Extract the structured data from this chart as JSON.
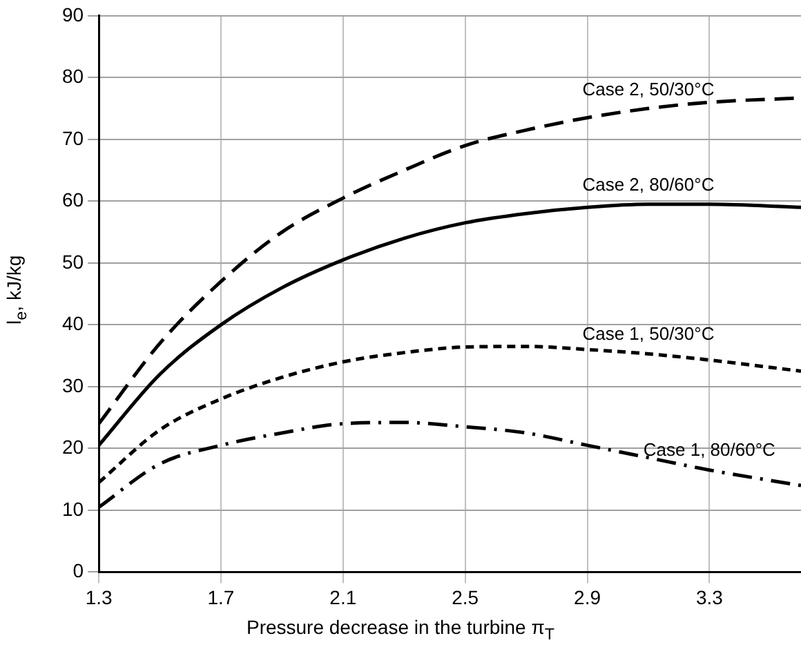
{
  "chart_data": {
    "type": "line",
    "xlabel": "Pressure decrease in the turbine π$_{T}$",
    "ylabel": "l$_{e}$, kJ/kg",
    "x": [
      1.3,
      1.5,
      1.7,
      1.9,
      2.1,
      2.3,
      2.5,
      2.7,
      2.9,
      3.1,
      3.3,
      3.6
    ],
    "series": [
      {
        "name": "Case 2, 50/30°C",
        "color": "#000000",
        "line_style": "dashed",
        "values": [
          24,
          37,
          47,
          55,
          60.5,
          65,
          69,
          71.5,
          73.5,
          75,
          76,
          76.7
        ]
      },
      {
        "name": "Case 2, 80/60°C",
        "color": "#000000",
        "line_style": "solid",
        "values": [
          20.5,
          32,
          40,
          46,
          50.5,
          54,
          56.5,
          58,
          59,
          59.5,
          59.5,
          59
        ]
      },
      {
        "name": "Case 1, 50/30°C",
        "color": "#000000",
        "line_style": "dotted",
        "values": [
          14.5,
          23,
          28,
          31.5,
          34,
          35.5,
          36.4,
          36.5,
          36,
          35.3,
          34.3,
          32.5
        ]
      },
      {
        "name": "Case 1, 80/60°C",
        "color": "#000000",
        "line_style": "dashdot",
        "values": [
          10.5,
          17.5,
          20.5,
          22.5,
          24,
          24.2,
          23.5,
          22.5,
          20.5,
          18.5,
          16.5,
          14
        ]
      }
    ],
    "xlim": [
      1.3,
      3.6
    ],
    "xticks": [
      1.3,
      1.7,
      2.1,
      2.5,
      2.9,
      3.3
    ],
    "ylim": [
      0,
      90
    ],
    "yticks": [
      0,
      10,
      20,
      30,
      40,
      50,
      60,
      70,
      80,
      90
    ],
    "grid": true,
    "legend": false,
    "marker": "none"
  }
}
